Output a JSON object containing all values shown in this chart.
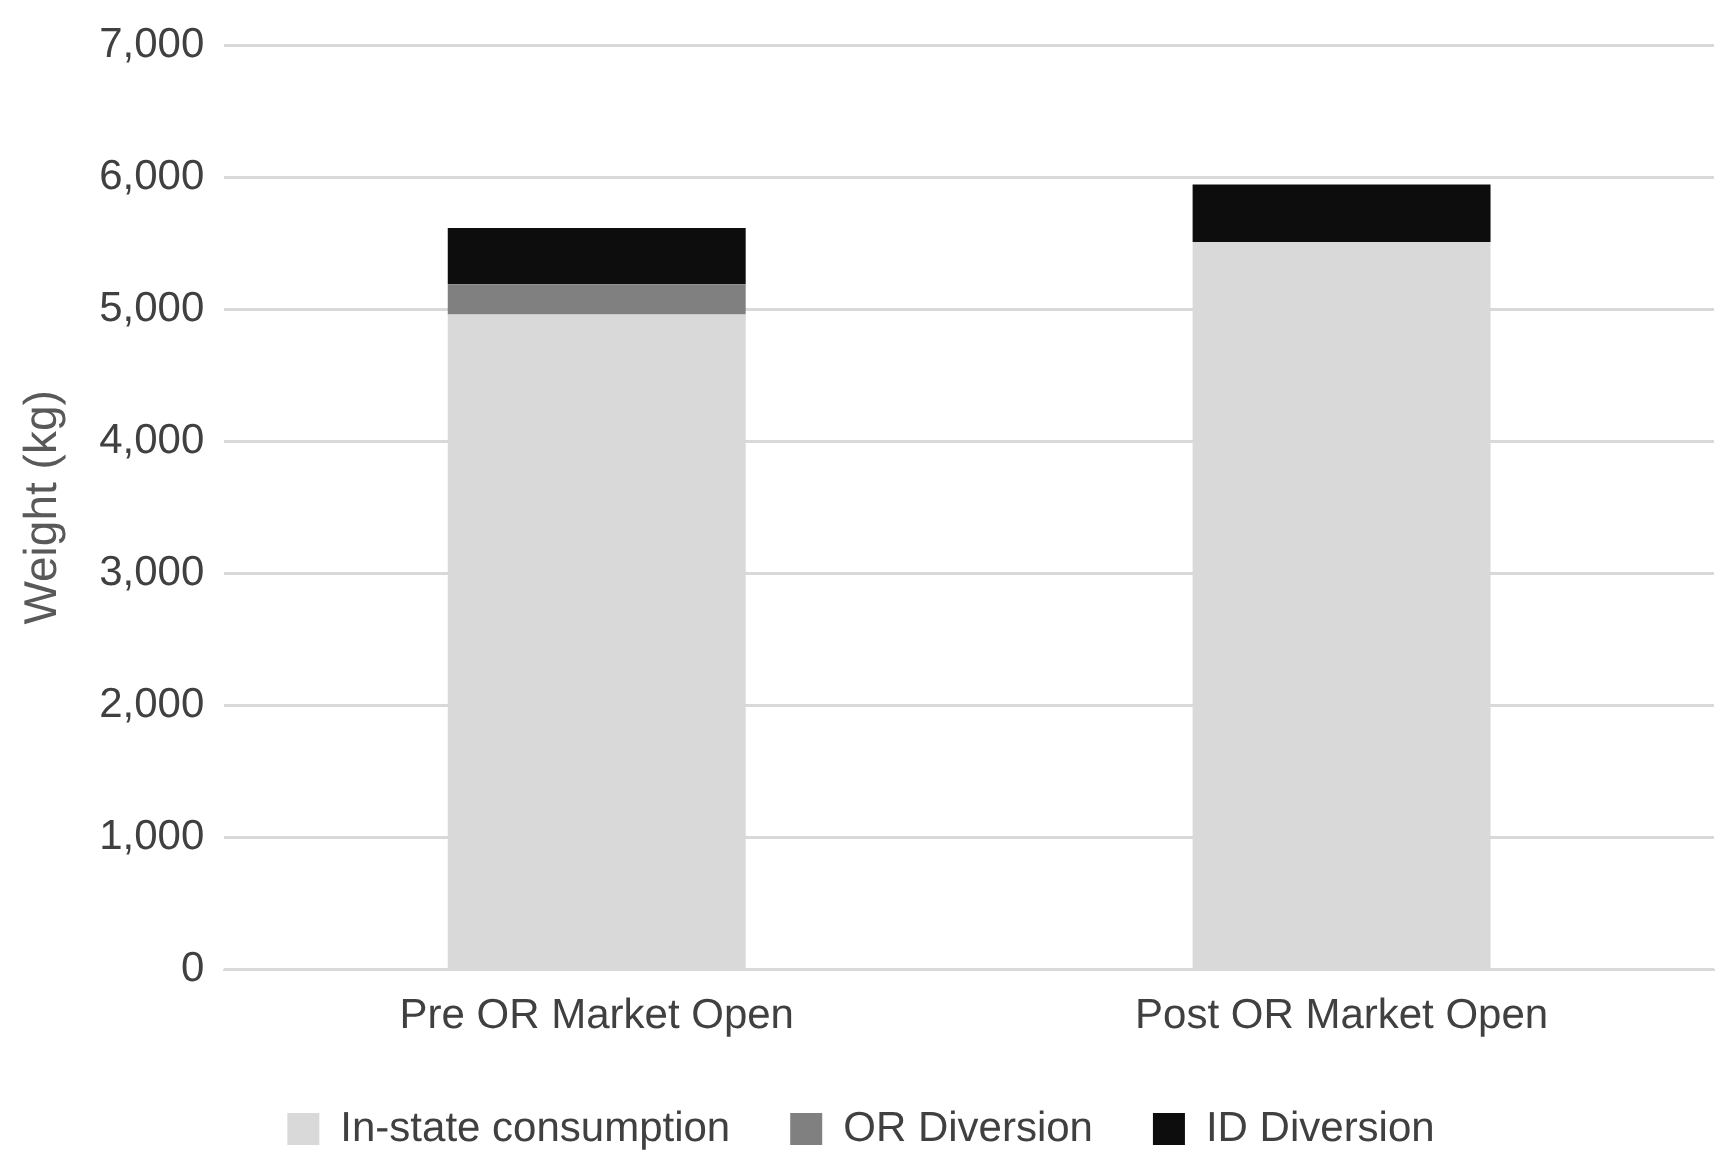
{
  "chart_data": {
    "type": "bar",
    "stacked": true,
    "ylabel": "Weight (kg)",
    "categories": [
      "Pre OR Market Open",
      "Post OR Market Open"
    ],
    "series": [
      {
        "name": "In-state consumption",
        "color": "#d9d9d9",
        "values": [
          4960,
          5510
        ]
      },
      {
        "name": "OR Diversion",
        "color": "#808080",
        "values": [
          230,
          0
        ]
      },
      {
        "name": "ID Diversion",
        "color": "#0d0d0d",
        "values": [
          425,
          435
        ]
      }
    ],
    "ylim": [
      0,
      7000
    ],
    "yticks": [
      {
        "value": 0,
        "label": "0"
      },
      {
        "value": 1000,
        "label": "1,000"
      },
      {
        "value": 2000,
        "label": "2,000"
      },
      {
        "value": 3000,
        "label": "3,000"
      },
      {
        "value": 4000,
        "label": "4,000"
      },
      {
        "value": 5000,
        "label": "5,000"
      },
      {
        "value": 6000,
        "label": "6,000"
      },
      {
        "value": 7000,
        "label": "7,000"
      }
    ],
    "grid": "y",
    "legend": "bottom"
  }
}
